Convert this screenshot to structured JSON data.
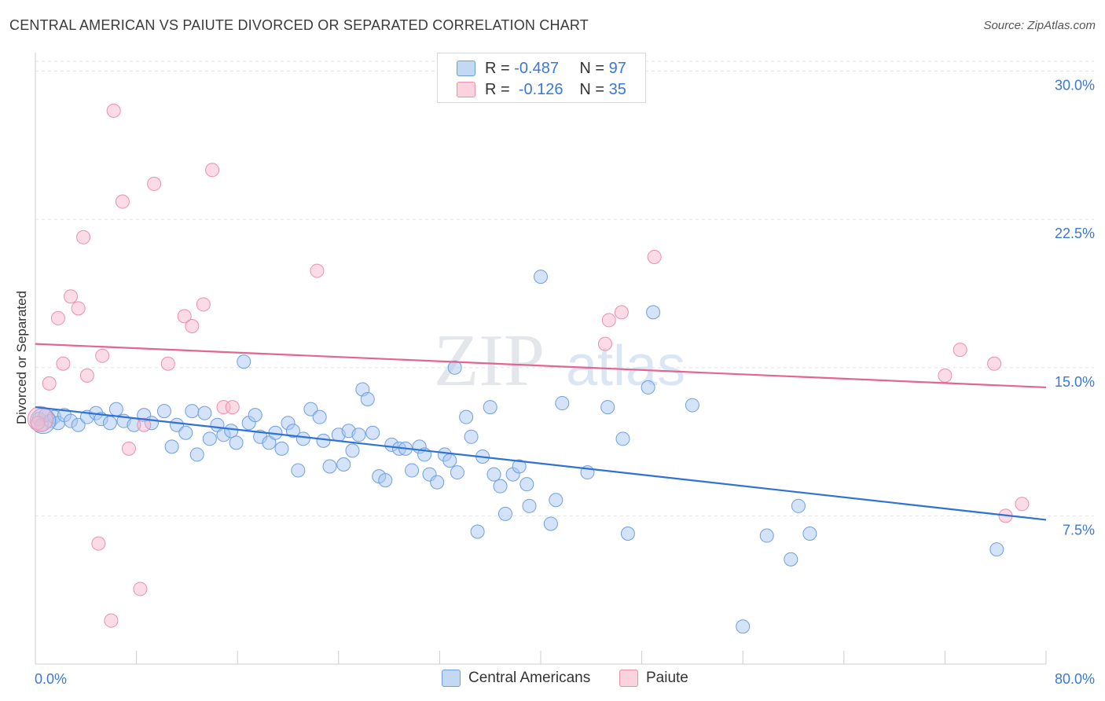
{
  "title": "CENTRAL AMERICAN VS PAIUTE DIVORCED OR SEPARATED CORRELATION CHART",
  "source": "Source: ZipAtlas.com",
  "legend_top": [
    {
      "r_label": "R =",
      "r_value": "-0.487",
      "n_label": "N =",
      "n_value": "97",
      "color": "#a9c8f0"
    },
    {
      "r_label": "R =",
      "r_value": "-0.126",
      "n_label": "N =",
      "n_value": "35",
      "color": "#f7b8cb"
    }
  ],
  "watermark": {
    "zip": "ZIP",
    "atlas": "atlas"
  },
  "chart_data": {
    "type": "scatter",
    "title": "CENTRAL AMERICAN VS PAIUTE DIVORCED OR SEPARATED CORRELATION CHART",
    "xlabel": "",
    "ylabel": "Divorced or Separated",
    "xlim": [
      0,
      80
    ],
    "ylim": [
      0,
      30.5
    ],
    "x_tick_labels": [
      "0.0%",
      "80.0%"
    ],
    "y_ticks": [
      7.5,
      15.0,
      22.5,
      30.0
    ],
    "y_tick_labels": [
      "7.5%",
      "15.0%",
      "22.5%",
      "30.0%"
    ],
    "grid": "horizontal dashed",
    "legend_position": "top-center and bottom",
    "series": [
      {
        "name": "Central Americans",
        "color": "#a9c8f0",
        "stroke": "#6d9fe0",
        "trend": {
          "x": [
            0,
            80
          ],
          "y": [
            13.0,
            7.3
          ],
          "color": "#2f72d6"
        },
        "points": [
          [
            0.3,
            12.4
          ],
          [
            0.5,
            12.1
          ],
          [
            0.8,
            12.6
          ],
          [
            1.2,
            12.3
          ],
          [
            1.5,
            12.5
          ],
          [
            1.8,
            12.2
          ],
          [
            2.3,
            12.6
          ],
          [
            2.8,
            12.3
          ],
          [
            3.4,
            12.1
          ],
          [
            4.1,
            12.5
          ],
          [
            4.8,
            12.7
          ],
          [
            5.2,
            12.4
          ],
          [
            5.9,
            12.2
          ],
          [
            6.4,
            12.9
          ],
          [
            7.0,
            12.3
          ],
          [
            7.8,
            12.1
          ],
          [
            8.6,
            12.6
          ],
          [
            9.2,
            12.2
          ],
          [
            10.2,
            12.8
          ],
          [
            10.8,
            11.0
          ],
          [
            11.2,
            12.1
          ],
          [
            11.9,
            11.7
          ],
          [
            12.4,
            12.8
          ],
          [
            12.8,
            10.6
          ],
          [
            13.4,
            12.7
          ],
          [
            13.8,
            11.4
          ],
          [
            14.4,
            12.1
          ],
          [
            14.9,
            11.6
          ],
          [
            15.5,
            11.8
          ],
          [
            15.9,
            11.2
          ],
          [
            16.5,
            15.3
          ],
          [
            16.9,
            12.2
          ],
          [
            17.4,
            12.6
          ],
          [
            17.8,
            11.5
          ],
          [
            18.5,
            11.2
          ],
          [
            19.0,
            11.7
          ],
          [
            19.5,
            10.9
          ],
          [
            20.0,
            12.2
          ],
          [
            20.4,
            11.8
          ],
          [
            20.8,
            9.8
          ],
          [
            21.2,
            11.4
          ],
          [
            21.8,
            12.9
          ],
          [
            22.5,
            12.5
          ],
          [
            22.8,
            11.3
          ],
          [
            23.3,
            10.0
          ],
          [
            24.0,
            11.6
          ],
          [
            24.4,
            10.1
          ],
          [
            24.8,
            11.8
          ],
          [
            25.1,
            10.8
          ],
          [
            25.6,
            11.6
          ],
          [
            25.9,
            13.9
          ],
          [
            26.3,
            13.4
          ],
          [
            26.7,
            11.7
          ],
          [
            27.2,
            9.5
          ],
          [
            27.7,
            9.3
          ],
          [
            28.2,
            11.1
          ],
          [
            28.8,
            10.9
          ],
          [
            29.3,
            10.9
          ],
          [
            29.8,
            9.8
          ],
          [
            30.4,
            11.0
          ],
          [
            30.8,
            10.6
          ],
          [
            31.2,
            9.6
          ],
          [
            31.8,
            9.2
          ],
          [
            32.4,
            10.6
          ],
          [
            32.8,
            10.3
          ],
          [
            33.2,
            15.0
          ],
          [
            33.4,
            9.7
          ],
          [
            34.1,
            12.5
          ],
          [
            34.5,
            11.5
          ],
          [
            35.0,
            6.7
          ],
          [
            35.4,
            10.5
          ],
          [
            36.0,
            13.0
          ],
          [
            36.3,
            9.6
          ],
          [
            36.8,
            9.0
          ],
          [
            37.2,
            7.6
          ],
          [
            37.8,
            9.6
          ],
          [
            38.3,
            10.0
          ],
          [
            38.9,
            9.1
          ],
          [
            39.1,
            8.0
          ],
          [
            40.0,
            19.6
          ],
          [
            40.8,
            7.1
          ],
          [
            41.2,
            8.3
          ],
          [
            41.7,
            13.2
          ],
          [
            43.7,
            9.7
          ],
          [
            45.3,
            13.0
          ],
          [
            46.5,
            11.4
          ],
          [
            46.9,
            6.6
          ],
          [
            48.5,
            14.0
          ],
          [
            48.9,
            17.8
          ],
          [
            52.0,
            13.1
          ],
          [
            56.0,
            1.9
          ],
          [
            57.9,
            6.5
          ],
          [
            59.8,
            5.3
          ],
          [
            60.4,
            8.0
          ],
          [
            61.3,
            6.6
          ],
          [
            76.1,
            5.8
          ],
          [
            0.6,
            12.3
          ]
        ]
      },
      {
        "name": "Paiute",
        "color": "#f7b8cb",
        "stroke": "#ec8fab",
        "trend": {
          "x": [
            0,
            80
          ],
          "y": [
            16.2,
            14.0
          ],
          "color": "#e2668f"
        },
        "points": [
          [
            0.2,
            12.2
          ],
          [
            1.1,
            14.2
          ],
          [
            1.8,
            17.5
          ],
          [
            2.2,
            15.2
          ],
          [
            2.8,
            18.6
          ],
          [
            3.4,
            18.0
          ],
          [
            3.8,
            21.6
          ],
          [
            4.1,
            14.6
          ],
          [
            5.0,
            6.1
          ],
          [
            5.3,
            15.6
          ],
          [
            6.0,
            2.2
          ],
          [
            6.2,
            28.0
          ],
          [
            6.9,
            23.4
          ],
          [
            7.4,
            10.9
          ],
          [
            8.3,
            3.8
          ],
          [
            8.6,
            12.1
          ],
          [
            9.4,
            24.3
          ],
          [
            10.5,
            15.2
          ],
          [
            11.8,
            17.6
          ],
          [
            12.4,
            17.1
          ],
          [
            13.3,
            18.2
          ],
          [
            14.0,
            25.0
          ],
          [
            14.9,
            13.0
          ],
          [
            15.6,
            13.0
          ],
          [
            22.3,
            19.9
          ],
          [
            45.1,
            16.2
          ],
          [
            45.4,
            17.4
          ],
          [
            46.4,
            17.8
          ],
          [
            49.0,
            20.6
          ],
          [
            72.0,
            14.6
          ],
          [
            73.2,
            15.9
          ],
          [
            75.9,
            15.2
          ],
          [
            76.8,
            7.5
          ],
          [
            78.1,
            8.1
          ],
          [
            0.4,
            12.4
          ]
        ]
      }
    ]
  },
  "legend_bottom": [
    {
      "label": "Central Americans",
      "color": "#a9c8f0"
    },
    {
      "label": "Paiute",
      "color": "#f7b8cb"
    }
  ]
}
